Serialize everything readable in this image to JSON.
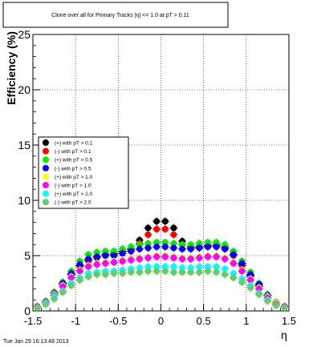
{
  "chart_data": {
    "type": "scatter",
    "title": "Clone  over all for Primary Tracks  |η| <= 1.0 at pT > 0.11",
    "xlabel": "η",
    "ylabel": "Efficiency (%)",
    "xlim": [
      -1.5,
      1.5
    ],
    "ylim": [
      0,
      25
    ],
    "grid": true,
    "legend_position": "middle-left",
    "x_ticks": [
      "-1.5",
      "-1",
      "-0.5",
      "0",
      "0.5",
      "1",
      "1.5"
    ],
    "y_ticks": [
      "0",
      "5",
      "10",
      "15",
      "20",
      "25"
    ],
    "footer_text": "Tue Jan 29 16:13:48 2013",
    "series": [
      {
        "name": "(+) with pT > 0.1",
        "color": "#000000",
        "x": [
          -1.45,
          -1.35,
          -1.25,
          -1.15,
          -1.05,
          -0.95,
          -0.85,
          -0.75,
          -0.65,
          -0.55,
          -0.45,
          -0.35,
          -0.25,
          -0.15,
          -0.05,
          0.05,
          0.15,
          0.25,
          0.35,
          0.45,
          0.55,
          0.65,
          0.75,
          0.85,
          0.95,
          1.05,
          1.15,
          1.25,
          1.35,
          1.45
        ],
        "values": [
          0.4,
          0.8,
          1.5,
          2.4,
          3.3,
          4.1,
          4.6,
          4.9,
          5.1,
          5.2,
          5.4,
          5.6,
          6.4,
          7.5,
          8.1,
          8.1,
          7.5,
          6.3,
          5.8,
          5.8,
          5.9,
          6.0,
          5.8,
          5.1,
          4.2,
          3.2,
          2.3,
          1.4,
          0.7,
          0.4
        ]
      },
      {
        "name": "(-) with pT > 0.1",
        "color": "#ff0000",
        "x": [
          -1.45,
          -1.35,
          -1.25,
          -1.15,
          -1.05,
          -0.95,
          -0.85,
          -0.75,
          -0.65,
          -0.55,
          -0.45,
          -0.35,
          -0.25,
          -0.15,
          -0.05,
          0.05,
          0.15,
          0.25,
          0.35,
          0.45,
          0.55,
          0.65,
          0.75,
          0.85,
          0.95,
          1.05,
          1.15,
          1.25,
          1.35,
          1.45
        ],
        "values": [
          0.4,
          0.8,
          1.5,
          2.3,
          3.2,
          4.0,
          4.5,
          4.8,
          5.0,
          5.1,
          5.3,
          5.5,
          6.1,
          6.9,
          7.4,
          7.4,
          6.9,
          6.0,
          5.7,
          5.7,
          5.8,
          5.9,
          5.7,
          5.0,
          4.1,
          3.1,
          2.2,
          1.3,
          0.7,
          0.4
        ]
      },
      {
        "name": "(+) with pT > 0.5",
        "color": "#00ee00",
        "x": [
          -1.45,
          -1.35,
          -1.25,
          -1.15,
          -1.05,
          -0.95,
          -0.85,
          -0.75,
          -0.65,
          -0.55,
          -0.45,
          -0.35,
          -0.25,
          -0.15,
          -0.05,
          0.05,
          0.15,
          0.25,
          0.35,
          0.45,
          0.55,
          0.65,
          0.75,
          0.85,
          0.95,
          1.05,
          1.15,
          1.25,
          1.35,
          1.45
        ],
        "values": [
          0.4,
          0.9,
          1.7,
          2.6,
          3.6,
          4.5,
          5.1,
          5.3,
          5.4,
          5.4,
          5.6,
          5.8,
          6.0,
          6.1,
          6.2,
          6.2,
          6.1,
          6.0,
          6.0,
          6.1,
          6.2,
          6.2,
          6.0,
          5.4,
          4.5,
          3.5,
          2.5,
          1.5,
          0.8,
          0.4
        ]
      },
      {
        "name": "(-) with pT > 0.5",
        "color": "#0000ff",
        "x": [
          -1.45,
          -1.35,
          -1.25,
          -1.15,
          -1.05,
          -0.95,
          -0.85,
          -0.75,
          -0.65,
          -0.55,
          -0.45,
          -0.35,
          -0.25,
          -0.15,
          -0.05,
          0.05,
          0.15,
          0.25,
          0.35,
          0.45,
          0.55,
          0.65,
          0.75,
          0.85,
          0.95,
          1.05,
          1.15,
          1.25,
          1.35,
          1.45
        ],
        "values": [
          0.4,
          0.8,
          1.6,
          2.5,
          3.4,
          4.2,
          4.7,
          4.9,
          5.0,
          5.0,
          5.2,
          5.4,
          5.6,
          5.7,
          5.8,
          5.8,
          5.7,
          5.6,
          5.6,
          5.7,
          5.8,
          5.8,
          5.6,
          5.1,
          4.3,
          3.3,
          2.4,
          1.4,
          0.7,
          0.4
        ]
      },
      {
        "name": "(+) with pT > 1.0",
        "color": "#ffff00",
        "x": [
          -1.45,
          -1.35,
          -1.25,
          -1.15,
          -1.05,
          -0.95,
          -0.85,
          -0.75,
          -0.65,
          -0.55,
          -0.45,
          -0.35,
          -0.25,
          -0.15,
          -0.05,
          0.05,
          0.15,
          0.25,
          0.35,
          0.45,
          0.55,
          0.65,
          0.75,
          0.85,
          0.95,
          1.05,
          1.15,
          1.25,
          1.35,
          1.45
        ],
        "values": [
          0.4,
          0.8,
          1.5,
          2.3,
          3.1,
          3.7,
          4.1,
          4.3,
          4.4,
          4.5,
          4.6,
          4.7,
          4.8,
          4.9,
          5.0,
          5.0,
          4.9,
          4.8,
          4.8,
          4.9,
          5.0,
          5.0,
          4.8,
          4.4,
          3.7,
          2.9,
          2.1,
          1.3,
          0.7,
          0.4
        ]
      },
      {
        "name": "(-) with pT > 1.0",
        "color": "#ff00ff",
        "x": [
          -1.45,
          -1.35,
          -1.25,
          -1.15,
          -1.05,
          -0.95,
          -0.85,
          -0.75,
          -0.65,
          -0.55,
          -0.45,
          -0.35,
          -0.25,
          -0.15,
          -0.05,
          0.05,
          0.15,
          0.25,
          0.35,
          0.45,
          0.55,
          0.65,
          0.75,
          0.85,
          0.95,
          1.05,
          1.15,
          1.25,
          1.35,
          1.45
        ],
        "values": [
          0.4,
          0.8,
          1.4,
          2.2,
          3.0,
          3.6,
          4.0,
          4.2,
          4.3,
          4.4,
          4.5,
          4.6,
          4.7,
          4.8,
          4.9,
          4.9,
          4.8,
          4.7,
          4.7,
          4.8,
          4.9,
          4.9,
          4.7,
          4.3,
          3.6,
          2.8,
          2.0,
          1.2,
          0.6,
          0.4
        ]
      },
      {
        "name": "(+) with pT > 2.0",
        "color": "#00ffff",
        "x": [
          -1.45,
          -1.35,
          -1.25,
          -1.15,
          -1.05,
          -0.95,
          -0.85,
          -0.75,
          -0.65,
          -0.55,
          -0.45,
          -0.35,
          -0.25,
          -0.15,
          -0.05,
          0.05,
          0.15,
          0.25,
          0.35,
          0.45,
          0.55,
          0.65,
          0.75,
          0.85,
          0.95,
          1.05,
          1.15,
          1.25,
          1.35,
          1.45
        ],
        "values": [
          0.3,
          0.7,
          1.3,
          1.8,
          2.5,
          3.0,
          3.4,
          3.5,
          3.6,
          3.6,
          3.7,
          3.8,
          3.9,
          4.0,
          4.0,
          4.0,
          4.0,
          3.9,
          3.9,
          4.0,
          4.0,
          4.0,
          3.8,
          3.4,
          2.9,
          2.3,
          1.6,
          1.0,
          0.5,
          0.3
        ]
      },
      {
        "name": "(-) with pT > 2.0",
        "color": "#66cc66",
        "x": [
          -1.45,
          -1.35,
          -1.25,
          -1.15,
          -1.05,
          -0.95,
          -0.85,
          -0.75,
          -0.65,
          -0.55,
          -0.45,
          -0.35,
          -0.25,
          -0.15,
          -0.05,
          0.05,
          0.15,
          0.25,
          0.35,
          0.45,
          0.55,
          0.65,
          0.75,
          0.85,
          0.95,
          1.05,
          1.15,
          1.25,
          1.35,
          1.45
        ],
        "values": [
          0.3,
          0.6,
          1.1,
          1.7,
          2.3,
          2.8,
          3.1,
          3.3,
          3.3,
          3.4,
          3.4,
          3.5,
          3.5,
          3.6,
          3.6,
          3.6,
          3.5,
          3.5,
          3.5,
          3.5,
          3.6,
          3.5,
          3.3,
          3.0,
          2.6,
          2.1,
          1.5,
          0.9,
          0.5,
          0.3
        ]
      }
    ]
  }
}
